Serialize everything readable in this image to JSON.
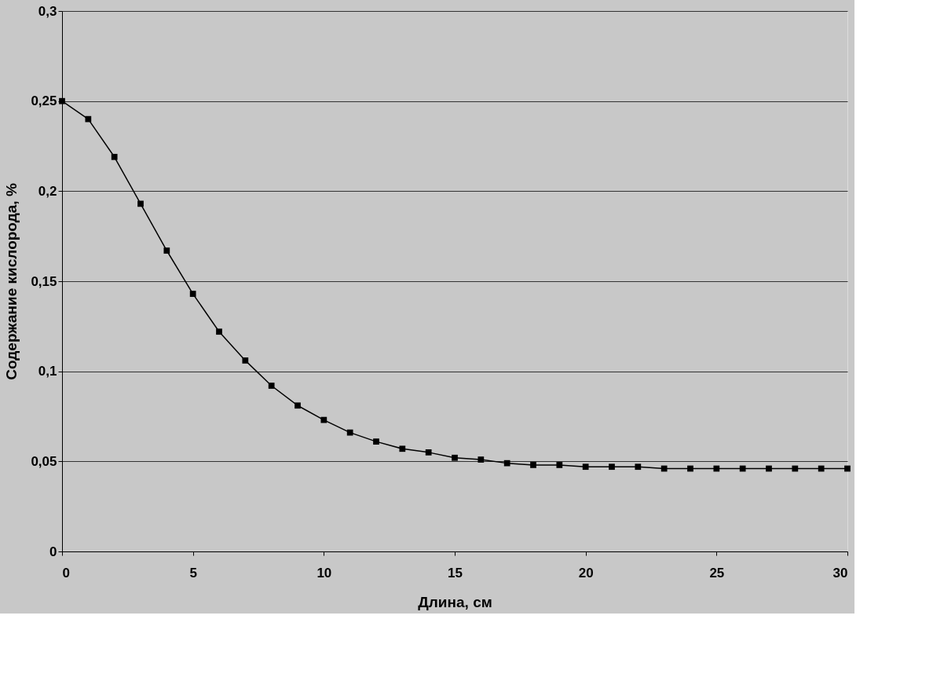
{
  "chart_data": {
    "type": "line",
    "xlabel": "Длина, см",
    "ylabel": "Содержание кислорода, %",
    "x": [
      0,
      1,
      2,
      3,
      4,
      5,
      6,
      7,
      8,
      9,
      10,
      11,
      12,
      13,
      14,
      15,
      16,
      17,
      18,
      19,
      20,
      21,
      22,
      23,
      24,
      25,
      26,
      27,
      28,
      29,
      30
    ],
    "series": [
      {
        "color": "#000000",
        "values": [
          0.25,
          0.24,
          0.219,
          0.193,
          0.167,
          0.143,
          0.122,
          0.106,
          0.092,
          0.081,
          0.073,
          0.066,
          0.061,
          0.057,
          0.055,
          0.052,
          0.051,
          0.049,
          0.048,
          0.048,
          0.047,
          0.047,
          0.047,
          0.046,
          0.046,
          0.046,
          0.046,
          0.046,
          0.046,
          0.046,
          0.046
        ]
      }
    ],
    "xlim": [
      0,
      30
    ],
    "xticks": [
      0,
      5,
      10,
      15,
      20,
      25,
      30
    ],
    "ylim": [
      0,
      0.3
    ],
    "yticks": [
      {
        "value": 0,
        "label": "0"
      },
      {
        "value": 0.05,
        "label": "0,05"
      },
      {
        "value": 0.1,
        "label": "0,1"
      },
      {
        "value": 0.15,
        "label": "0,15"
      },
      {
        "value": 0.2,
        "label": "0,2"
      },
      {
        "value": 0.25,
        "label": "0,25"
      },
      {
        "value": 0.3,
        "label": "0,3"
      }
    ],
    "grid": "y",
    "marker": "square",
    "line_style": "solid",
    "legend": false
  }
}
